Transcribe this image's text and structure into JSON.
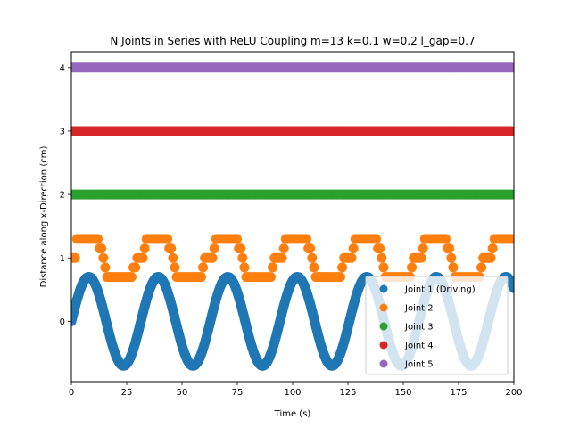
{
  "chart_data": {
    "type": "scatter",
    "title": "N Joints in Series with ReLU Coupling m=13 k=0.1 w=0.2 l_gap=0.7",
    "xlabel": "Time (s)",
    "ylabel": "Distance along x-Direction (cm)",
    "xlim": [
      0,
      200
    ],
    "ylim": [
      -0.95,
      4.25
    ],
    "xticks": [
      0,
      25,
      50,
      75,
      100,
      125,
      150,
      175,
      200
    ],
    "yticks": [
      0,
      1,
      2,
      3,
      4
    ],
    "grid": false,
    "legend_position": "lower-right",
    "series": [
      {
        "name": "Joint 1 (Driving)",
        "color": "#1f77b4",
        "description": "sinusoid amplitude 0.7, angular frequency 0.2",
        "amplitude": 0.7,
        "omega": 0.2,
        "offset": 0
      },
      {
        "name": "Joint 2",
        "color": "#ff7f0e",
        "description": "stepped periodic between 0.7 and 1.3",
        "levels": [
          0.7,
          1.0,
          1.3
        ]
      },
      {
        "name": "Joint 3",
        "color": "#2ca02c",
        "constant": 2.0
      },
      {
        "name": "Joint 4",
        "color": "#d62728",
        "constant": 3.0
      },
      {
        "name": "Joint 5",
        "color": "#9467bd",
        "constant": 4.0
      }
    ]
  }
}
